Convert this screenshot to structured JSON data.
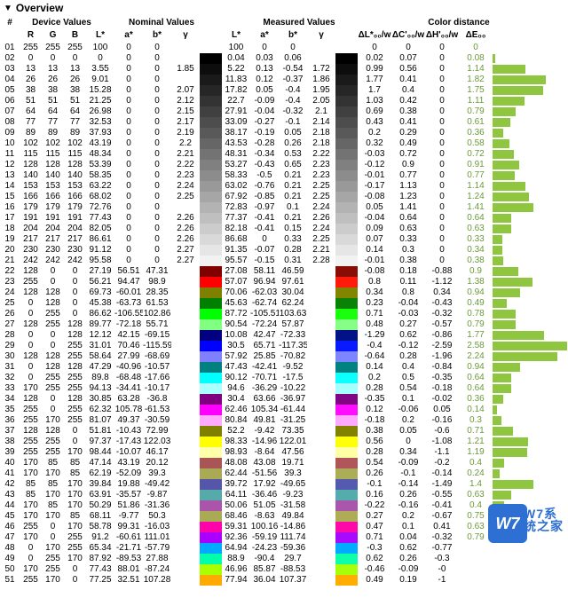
{
  "title": "Overview",
  "group_headers": {
    "num": "#",
    "dev": "Device Values",
    "nom": "Nominal Values",
    "meas": "Measured Values",
    "cd": "Color distance"
  },
  "col_headers": {
    "R": "R",
    "G": "G",
    "B": "B",
    "nL": "L*",
    "na": "a*",
    "nb": "b*",
    "ng": "γ",
    "mL": "L*",
    "ma": "a*",
    "mb": "b*",
    "mg": "γ",
    "dL": "ΔL*₀₀/w",
    "dC": "ΔC'₀₀/w",
    "dH": "ΔH'₀₀/w",
    "dE": "ΔE₀₀"
  },
  "watermark": {
    "badge": "W7",
    "text": "W7系统之家"
  },
  "bar_max": 2.6,
  "rows": [
    {
      "n": "01",
      "R": "255",
      "G": "255",
      "B": "255",
      "nL": "100",
      "na": "0",
      "nb": "0",
      "ng": "",
      "sw1": "#ffffff",
      "mL": "100",
      "ma": "0",
      "mb": "0",
      "mg": "",
      "sw2": "#ffffff",
      "dL": "0",
      "dC": "0",
      "dH": "0",
      "dE": "0"
    },
    {
      "n": "02",
      "R": "0",
      "G": "0",
      "B": "0",
      "nL": "0",
      "na": "0",
      "nb": "0",
      "ng": "",
      "sw1": "#000000",
      "mL": "0.04",
      "ma": "0.03",
      "mb": "0.06",
      "mg": "",
      "sw2": "#000000",
      "dL": "0.02",
      "dC": "0.07",
      "dH": "0",
      "dE": "0.08"
    },
    {
      "n": "03",
      "R": "13",
      "G": "13",
      "B": "13",
      "nL": "3.55",
      "na": "0",
      "nb": "0",
      "ng": "1.85",
      "sw1": "#0d0d0d",
      "mL": "5.22",
      "ma": "0.13",
      "mb": "-0.54",
      "mg": "1.72",
      "sw2": "#0d0d0d",
      "dL": "0.99",
      "dC": "0.56",
      "dH": "0",
      "dE": "1.14"
    },
    {
      "n": "04",
      "R": "26",
      "G": "26",
      "B": "26",
      "nL": "9.01",
      "na": "0",
      "nb": "0",
      "ng": "",
      "sw1": "#1a1a1a",
      "mL": "11.83",
      "ma": "0.12",
      "mb": "-0.37",
      "mg": "1.86",
      "sw2": "#1a1a1a",
      "dL": "1.77",
      "dC": "0.41",
      "dH": "0",
      "dE": "1.82"
    },
    {
      "n": "05",
      "R": "38",
      "G": "38",
      "B": "38",
      "nL": "15.28",
      "na": "0",
      "nb": "0",
      "ng": "2.07",
      "sw1": "#262626",
      "mL": "17.82",
      "ma": "0.05",
      "mb": "-0.4",
      "mg": "1.95",
      "sw2": "#262626",
      "dL": "1.7",
      "dC": "0.4",
      "dH": "0",
      "dE": "1.75"
    },
    {
      "n": "06",
      "R": "51",
      "G": "51",
      "B": "51",
      "nL": "21.25",
      "na": "0",
      "nb": "0",
      "ng": "2.12",
      "sw1": "#333333",
      "mL": "22.7",
      "ma": "-0.09",
      "mb": "-0.4",
      "mg": "2.05",
      "sw2": "#333333",
      "dL": "1.03",
      "dC": "0.42",
      "dH": "0",
      "dE": "1.11"
    },
    {
      "n": "07",
      "R": "64",
      "G": "64",
      "B": "64",
      "nL": "26.98",
      "na": "0",
      "nb": "0",
      "ng": "2.15",
      "sw1": "#404040",
      "mL": "27.91",
      "ma": "-0.04",
      "mb": "-0.32",
      "mg": "2.1",
      "sw2": "#404040",
      "dL": "0.69",
      "dC": "0.38",
      "dH": "0",
      "dE": "0.79"
    },
    {
      "n": "08",
      "R": "77",
      "G": "77",
      "B": "77",
      "nL": "32.53",
      "na": "0",
      "nb": "0",
      "ng": "2.17",
      "sw1": "#4d4d4d",
      "mL": "33.09",
      "ma": "-0.27",
      "mb": "-0.1",
      "mg": "2.14",
      "sw2": "#4d4d4d",
      "dL": "0.43",
      "dC": "0.41",
      "dH": "0",
      "dE": "0.61"
    },
    {
      "n": "09",
      "R": "89",
      "G": "89",
      "B": "89",
      "nL": "37.93",
      "na": "0",
      "nb": "0",
      "ng": "2.19",
      "sw1": "#595959",
      "mL": "38.17",
      "ma": "-0.19",
      "mb": "0.05",
      "mg": "2.18",
      "sw2": "#595959",
      "dL": "0.2",
      "dC": "0.29",
      "dH": "0",
      "dE": "0.36"
    },
    {
      "n": "10",
      "R": "102",
      "G": "102",
      "B": "102",
      "nL": "43.19",
      "na": "0",
      "nb": "0",
      "ng": "2.2",
      "sw1": "#666666",
      "mL": "43.53",
      "ma": "-0.28",
      "mb": "0.26",
      "mg": "2.18",
      "sw2": "#666666",
      "dL": "0.32",
      "dC": "0.49",
      "dH": "0",
      "dE": "0.58"
    },
    {
      "n": "11",
      "R": "115",
      "G": "115",
      "B": "115",
      "nL": "48.34",
      "na": "0",
      "nb": "0",
      "ng": "2.21",
      "sw1": "#737373",
      "mL": "48.31",
      "ma": "-0.34",
      "mb": "0.53",
      "mg": "2.22",
      "sw2": "#737373",
      "dL": "-0.03",
      "dC": "0.72",
      "dH": "0",
      "dE": "0.72"
    },
    {
      "n": "12",
      "R": "128",
      "G": "128",
      "B": "128",
      "nL": "53.39",
      "na": "0",
      "nb": "0",
      "ng": "2.22",
      "sw1": "#808080",
      "mL": "53.27",
      "ma": "-0.43",
      "mb": "0.65",
      "mg": "2.23",
      "sw2": "#808080",
      "dL": "-0.12",
      "dC": "0.9",
      "dH": "0",
      "dE": "0.91"
    },
    {
      "n": "13",
      "R": "140",
      "G": "140",
      "B": "140",
      "nL": "58.35",
      "na": "0",
      "nb": "0",
      "ng": "2.23",
      "sw1": "#8c8c8c",
      "mL": "58.33",
      "ma": "-0.5",
      "mb": "0.21",
      "mg": "2.23",
      "sw2": "#8c8c8c",
      "dL": "-0.01",
      "dC": "0.77",
      "dH": "0",
      "dE": "0.77"
    },
    {
      "n": "14",
      "R": "153",
      "G": "153",
      "B": "153",
      "nL": "63.22",
      "na": "0",
      "nb": "0",
      "ng": "2.24",
      "sw1": "#999999",
      "mL": "63.02",
      "ma": "-0.76",
      "mb": "0.21",
      "mg": "2.25",
      "sw2": "#999999",
      "dL": "-0.17",
      "dC": "1.13",
      "dH": "0",
      "dE": "1.14"
    },
    {
      "n": "15",
      "R": "166",
      "G": "166",
      "B": "166",
      "nL": "68.02",
      "na": "0",
      "nb": "0",
      "ng": "2.25",
      "sw1": "#a6a6a6",
      "mL": "67.92",
      "ma": "-0.85",
      "mb": "0.21",
      "mg": "2.25",
      "sw2": "#a6a6a6",
      "dL": "-0.08",
      "dC": "1.23",
      "dH": "0",
      "dE": "1.24"
    },
    {
      "n": "16",
      "R": "179",
      "G": "179",
      "B": "179",
      "nL": "72.76",
      "na": "0",
      "nb": "0",
      "ng": "",
      "sw1": "#b3b3b3",
      "mL": "72.83",
      "ma": "-0.97",
      "mb": "0.1",
      "mg": "2.24",
      "sw2": "#b3b3b3",
      "dL": "0.05",
      "dC": "1.41",
      "dH": "0",
      "dE": "1.41"
    },
    {
      "n": "17",
      "R": "191",
      "G": "191",
      "B": "191",
      "nL": "77.43",
      "na": "0",
      "nb": "0",
      "ng": "2.26",
      "sw1": "#bfbfbf",
      "mL": "77.37",
      "ma": "-0.41",
      "mb": "0.21",
      "mg": "2.26",
      "sw2": "#bfbfbf",
      "dL": "-0.04",
      "dC": "0.64",
      "dH": "0",
      "dE": "0.64"
    },
    {
      "n": "18",
      "R": "204",
      "G": "204",
      "B": "204",
      "nL": "82.05",
      "na": "0",
      "nb": "0",
      "ng": "2.26",
      "sw1": "#cccccc",
      "mL": "82.18",
      "ma": "-0.41",
      "mb": "0.15",
      "mg": "2.24",
      "sw2": "#cccccc",
      "dL": "0.09",
      "dC": "0.63",
      "dH": "0",
      "dE": "0.63"
    },
    {
      "n": "19",
      "R": "217",
      "G": "217",
      "B": "217",
      "nL": "86.61",
      "na": "0",
      "nb": "0",
      "ng": "2.26",
      "sw1": "#d9d9d9",
      "mL": "86.68",
      "ma": "0",
      "mb": "0.33",
      "mg": "2.25",
      "sw2": "#d9d9d9",
      "dL": "0.07",
      "dC": "0.33",
      "dH": "0",
      "dE": "0.33"
    },
    {
      "n": "20",
      "R": "230",
      "G": "230",
      "B": "230",
      "nL": "91.12",
      "na": "0",
      "nb": "0",
      "ng": "2.27",
      "sw1": "#e6e6e6",
      "mL": "91.35",
      "ma": "-0.07",
      "mb": "0.28",
      "mg": "2.21",
      "sw2": "#e6e6e6",
      "dL": "0.14",
      "dC": "0.3",
      "dH": "0",
      "dE": "0.34"
    },
    {
      "n": "21",
      "R": "242",
      "G": "242",
      "B": "242",
      "nL": "95.58",
      "na": "0",
      "nb": "0",
      "ng": "2.27",
      "sw1": "#f2f2f2",
      "mL": "95.57",
      "ma": "-0.15",
      "mb": "0.31",
      "mg": "2.28",
      "sw2": "#f2f2f2",
      "dL": "-0.01",
      "dC": "0.38",
      "dH": "0",
      "dE": "0.38"
    },
    {
      "n": "22",
      "R": "128",
      "G": "0",
      "B": "0",
      "nL": "27.19",
      "na": "56.51",
      "nb": "47.31",
      "ng": "",
      "sw1": "#800000",
      "mL": "27.08",
      "ma": "58.11",
      "mb": "46.59",
      "mg": "",
      "sw2": "#8a0d05",
      "dL": "-0.08",
      "dC": "0.18",
      "dH": "-0.88",
      "dE": "0.9"
    },
    {
      "n": "23",
      "R": "255",
      "G": "0",
      "B": "0",
      "nL": "56.21",
      "na": "94.47",
      "nb": "98.9",
      "ng": "",
      "sw1": "#ff0000",
      "mL": "57.07",
      "ma": "96.94",
      "mb": "97.61",
      "mg": "",
      "sw2": "#ff1a0a",
      "dL": "0.8",
      "dC": "0.11",
      "dH": "-1.12",
      "dE": "1.38"
    },
    {
      "n": "24",
      "R": "128",
      "G": "128",
      "B": "0",
      "nL": "69.73",
      "na": "-60.01",
      "nb": "28.35",
      "ng": "",
      "sw1": "#808000",
      "mL": "70.06",
      "ma": "-62.03",
      "mb": "30.04",
      "mg": "",
      "sw2": "#828500",
      "dL": "0.34",
      "dC": "0.8",
      "dH": "0.34",
      "dE": "0.94"
    },
    {
      "n": "25",
      "R": "0",
      "G": "128",
      "B": "0",
      "nL": "45.38",
      "na": "-63.73",
      "nb": "61.53",
      "ng": "",
      "sw1": "#008000",
      "mL": "45.63",
      "ma": "-62.74",
      "mb": "62.24",
      "mg": "",
      "sw2": "#0a8205",
      "dL": "0.23",
      "dC": "-0.04",
      "dH": "-0.43",
      "dE": "0.49"
    },
    {
      "n": "26",
      "R": "0",
      "G": "255",
      "B": "0",
      "nL": "86.62",
      "na": "-106.55",
      "nb": "102.86",
      "ng": "",
      "sw1": "#00ff00",
      "mL": "87.72",
      "ma": "-105.51",
      "mb": "103.63",
      "mg": "",
      "sw2": "#1aff0d",
      "dL": "0.71",
      "dC": "-0.03",
      "dH": "-0.32",
      "dE": "0.78"
    },
    {
      "n": "27",
      "R": "128",
      "G": "255",
      "B": "128",
      "nL": "89.77",
      "na": "-72.18",
      "nb": "55.71",
      "ng": "",
      "sw1": "#80ff80",
      "mL": "90.54",
      "ma": "-72.24",
      "mb": "57.87",
      "mg": "",
      "sw2": "#85ff85",
      "dL": "0.48",
      "dC": "0.27",
      "dH": "-0.57",
      "dE": "0.79"
    },
    {
      "n": "28",
      "R": "0",
      "G": "0",
      "B": "128",
      "nL": "12.12",
      "na": "42.15",
      "nb": "-69.15",
      "ng": "",
      "sw1": "#000080",
      "mL": "10.08",
      "ma": "42.47",
      "mb": "-72.33",
      "mg": "",
      "sw2": "#001285",
      "dL": "-1.29",
      "dC": "0.62",
      "dH": "-0.86",
      "dE": "1.77"
    },
    {
      "n": "29",
      "R": "0",
      "G": "0",
      "B": "255",
      "nL": "31.01",
      "na": "70.46",
      "nb": "-115.59",
      "ng": "",
      "sw1": "#0000ff",
      "mL": "30.5",
      "ma": "65.71",
      "mb": "-117.35",
      "mg": "",
      "sw2": "#0a1aff",
      "dL": "-0.4",
      "dC": "-0.12",
      "dH": "-2.59",
      "dE": "2.58"
    },
    {
      "n": "30",
      "R": "128",
      "G": "128",
      "B": "255",
      "nL": "58.64",
      "na": "27.99",
      "nb": "-68.69",
      "ng": "",
      "sw1": "#8080ff",
      "mL": "57.92",
      "ma": "25.85",
      "mb": "-70.82",
      "mg": "",
      "sw2": "#7d85ff",
      "dL": "-0.64",
      "dC": "0.28",
      "dH": "-1.96",
      "dE": "2.24"
    },
    {
      "n": "31",
      "R": "0",
      "G": "128",
      "B": "128",
      "nL": "47.29",
      "na": "-40.96",
      "nb": "-10.57",
      "ng": "",
      "sw1": "#008080",
      "mL": "47.43",
      "ma": "-42.41",
      "mb": "-9.52",
      "mg": "",
      "sw2": "#008282",
      "dL": "0.14",
      "dC": "0.4",
      "dH": "-0.84",
      "dE": "0.94"
    },
    {
      "n": "32",
      "R": "0",
      "G": "255",
      "B": "255",
      "nL": "89.8",
      "na": "-68.48",
      "nb": "-17.66",
      "ng": "",
      "sw1": "#00ffff",
      "mL": "90.12",
      "ma": "-70.71",
      "mb": "-17.5",
      "mg": "",
      "sw2": "#0dffff",
      "dL": "0.2",
      "dC": "0.5",
      "dH": "-0.35",
      "dE": "0.64"
    },
    {
      "n": "33",
      "R": "170",
      "G": "255",
      "B": "255",
      "nL": "94.13",
      "na": "-34.41",
      "nb": "-10.17",
      "ng": "",
      "sw1": "#aaffff",
      "mL": "94.6",
      "ma": "-36.29",
      "mb": "-10.22",
      "mg": "",
      "sw2": "#a6ffff",
      "dL": "0.28",
      "dC": "0.54",
      "dH": "-0.18",
      "dE": "0.64"
    },
    {
      "n": "34",
      "R": "128",
      "G": "0",
      "B": "128",
      "nL": "30.85",
      "na": "63.28",
      "nb": "-36.8",
      "ng": "",
      "sw1": "#800080",
      "mL": "30.4",
      "ma": "63.66",
      "mb": "-36.97",
      "mg": "",
      "sw2": "#820585",
      "dL": "-0.35",
      "dC": "0.1",
      "dH": "-0.02",
      "dE": "0.36"
    },
    {
      "n": "35",
      "R": "255",
      "G": "0",
      "B": "255",
      "nL": "62.32",
      "na": "105.78",
      "nb": "-61.53",
      "ng": "",
      "sw1": "#ff00ff",
      "mL": "62.46",
      "ma": "105.34",
      "mb": "-61.44",
      "mg": "",
      "sw2": "#ff0dff",
      "dL": "0.12",
      "dC": "-0.06",
      "dH": "0.05",
      "dE": "0.14"
    },
    {
      "n": "36",
      "R": "255",
      "G": "170",
      "B": "255",
      "nL": "81.07",
      "na": "49.37",
      "nb": "-30.59",
      "ng": "",
      "sw1": "#ffaaff",
      "mL": "80.84",
      "ma": "49.81",
      "mb": "-31.25",
      "mg": "",
      "sw2": "#ffa8ff",
      "dL": "-0.18",
      "dC": "0.2",
      "dH": "-0.16",
      "dE": "0.3"
    },
    {
      "n": "37",
      "R": "128",
      "G": "128",
      "B": "0",
      "nL": "51.81",
      "na": "-10.43",
      "nb": "72.99",
      "ng": "",
      "sw1": "#808000",
      "mL": "52.2",
      "ma": "-9.42",
      "mb": "73.35",
      "mg": "",
      "sw2": "#838200",
      "dL": "0.38",
      "dC": "0.05",
      "dH": "-0.6",
      "dE": "0.71"
    },
    {
      "n": "38",
      "R": "255",
      "G": "255",
      "B": "0",
      "nL": "97.37",
      "na": "-17.43",
      "nb": "122.03",
      "ng": "",
      "sw1": "#ffff00",
      "mL": "98.33",
      "ma": "-14.96",
      "mb": "122.01",
      "mg": "",
      "sw2": "#ffff0a",
      "dL": "0.56",
      "dC": "0",
      "dH": "-1.08",
      "dE": "1.21"
    },
    {
      "n": "39",
      "R": "255",
      "G": "255",
      "B": "170",
      "nL": "98.44",
      "na": "-10.07",
      "nb": "46.17",
      "ng": "",
      "sw1": "#ffffaa",
      "mL": "98.93",
      "ma": "-8.64",
      "mb": "47.56",
      "mg": "",
      "sw2": "#ffffa5",
      "dL": "0.28",
      "dC": "0.34",
      "dH": "-1.1",
      "dE": "1.19"
    },
    {
      "n": "40",
      "R": "170",
      "G": "85",
      "B": "85",
      "nL": "47.14",
      "na": "43.19",
      "nb": "20.12",
      "ng": "",
      "sw1": "#aa5555",
      "mL": "48.08",
      "ma": "43.08",
      "mb": "19.71",
      "mg": "",
      "sw2": "#b0565a",
      "dL": "0.54",
      "dC": "-0.09",
      "dH": "-0.2",
      "dE": "0.4"
    },
    {
      "n": "41",
      "R": "170",
      "G": "170",
      "B": "85",
      "nL": "62.19",
      "na": "-52.09",
      "nb": "39.3",
      "ng": "",
      "sw1": "#aaaa55",
      "mL": "62.44",
      "ma": "-51.56",
      "mb": "39.3",
      "mg": "",
      "sw2": "#abae56",
      "dL": "0.26",
      "dC": "-0.1",
      "dH": "-0.14",
      "dE": "0.24"
    },
    {
      "n": "42",
      "R": "85",
      "G": "85",
      "B": "170",
      "nL": "39.84",
      "na": "19.88",
      "nb": "-49.42",
      "ng": "",
      "sw1": "#5555aa",
      "mL": "39.72",
      "ma": "17.92",
      "mb": "-49.65",
      "mg": "",
      "sw2": "#545aae",
      "dL": "-0.1",
      "dC": "-0.14",
      "dH": "-1.49",
      "dE": "1.4"
    },
    {
      "n": "43",
      "R": "85",
      "G": "170",
      "B": "170",
      "nL": "63.91",
      "na": "-35.57",
      "nb": "-9.87",
      "ng": "",
      "sw1": "#55aaaa",
      "mL": "64.11",
      "ma": "-36.46",
      "mb": "-9.23",
      "mg": "",
      "sw2": "#54acac",
      "dL": "0.16",
      "dC": "0.26",
      "dH": "-0.55",
      "dE": "0.63"
    },
    {
      "n": "44",
      "R": "170",
      "G": "85",
      "B": "170",
      "nL": "50.29",
      "na": "51.86",
      "nb": "-31.36",
      "ng": "",
      "sw1": "#aa55aa",
      "mL": "50.06",
      "ma": "51.05",
      "mb": "-31.58",
      "mg": "",
      "sw2": "#aa56ad",
      "dL": "-0.22",
      "dC": "-0.16",
      "dH": "-0.41",
      "dE": "0.4"
    },
    {
      "n": "45",
      "R": "170",
      "G": "170",
      "B": "85",
      "nL": "68.11",
      "na": "-9.77",
      "nb": "50.3",
      "ng": "",
      "sw1": "#aaaa55",
      "mL": "68.46",
      "ma": "-8.63",
      "mb": "49.84",
      "mg": "",
      "sw2": "#aead56",
      "dL": "0.27",
      "dC": "0.2",
      "dH": "-0.67",
      "dE": "0.75"
    },
    {
      "n": "46",
      "R": "255",
      "G": "0",
      "B": "170",
      "nL": "58.78",
      "na": "99.31",
      "nb": "-16.03",
      "ng": "",
      "sw1": "#ff00aa",
      "mL": "59.31",
      "ma": "100.16",
      "mb": "-14.86",
      "mg": "",
      "sw2": "#ff0aa8",
      "dL": "0.47",
      "dC": "0.1",
      "dH": "0.41",
      "dE": "0.63"
    },
    {
      "n": "47",
      "R": "170",
      "G": "0",
      "B": "255",
      "nL": "91.2",
      "na": "-60.61",
      "nb": "111.01",
      "ng": "",
      "sw1": "#aa00ff",
      "mL": "92.36",
      "ma": "-59.19",
      "mb": "111.74",
      "mg": "",
      "sw2": "#a80aff",
      "dL": "0.71",
      "dC": "0.04",
      "dH": "-0.32",
      "dE": "0.79"
    },
    {
      "n": "48",
      "R": "0",
      "G": "170",
      "B": "255",
      "nL": "65.34",
      "na": "-21.71",
      "nb": "-57.79",
      "ng": "",
      "sw1": "#00aaff",
      "mL": "64.94",
      "ma": "-24.23",
      "mb": "-59.36",
      "mg": "",
      "sw2": "#00acff",
      "dL": "-0.3",
      "dC": "0.62",
      "dH": "-0.77",
      "dE": ""
    },
    {
      "n": "49",
      "R": "0",
      "G": "255",
      "B": "170",
      "nL": "87.92",
      "na": "-89.53",
      "nb": "27.88",
      "ng": "",
      "sw1": "#00ffaa",
      "mL": "88.9",
      "ma": "-90.4",
      "mb": "29.7",
      "mg": "",
      "sw2": "#0dffa8",
      "dL": "0.62",
      "dC": "0.26",
      "dH": "-0.3",
      "dE": ""
    },
    {
      "n": "50",
      "R": "170",
      "G": "255",
      "B": "0",
      "nL": "77.43",
      "na": "88.01",
      "nb": "-87.24",
      "ng": "",
      "sw1": "#aaff00",
      "mL": "46.96",
      "ma": "85.87",
      "mb": "-88.53",
      "mg": "",
      "sw2": "#a8ff0a",
      "dL": "-0.46",
      "dC": "-0.09",
      "dH": "-0",
      "dE": ""
    },
    {
      "n": "51",
      "R": "255",
      "G": "170",
      "B": "0",
      "nL": "77.25",
      "na": "32.51",
      "nb": "107.28",
      "ng": "",
      "sw1": "#ffaa00",
      "mL": "77.94",
      "ma": "36.04",
      "mb": "107.37",
      "mg": "",
      "sw2": "#ffad00",
      "dL": "0.49",
      "dC": "0.19",
      "dH": "-1",
      "dE": ""
    }
  ]
}
